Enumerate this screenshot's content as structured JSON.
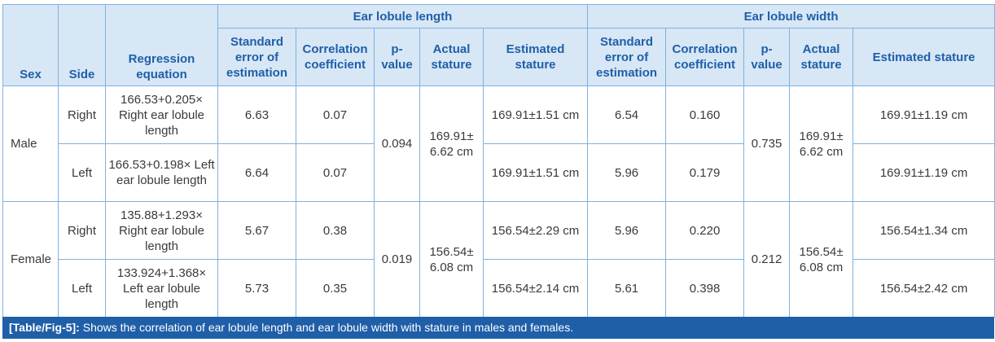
{
  "headers": {
    "sex": "Sex",
    "side": "Side",
    "regression": "Regression equation",
    "group_length": "Ear lobule length",
    "group_width": "Ear lobule width",
    "see": "Standard error of estimation",
    "corr": "Correlation coefficient",
    "pvalue": "p-value",
    "actual": "Actual stature",
    "estimated": "Estimated stature"
  },
  "rows": [
    {
      "sex": "Male",
      "side": "Right",
      "regression": "166.53+0.205× Right ear lobule length",
      "len_see": "6.63",
      "len_corr": "0.07",
      "len_p": "0.094",
      "len_actual": "169.91± 6.62 cm",
      "len_est": "169.91±1.51 cm",
      "wid_see": "6.54",
      "wid_corr": "0.160",
      "wid_p": "0.735",
      "wid_actual": "169.91± 6.62 cm",
      "wid_est": "169.91±1.19 cm"
    },
    {
      "side": "Left",
      "regression": "166.53+0.198× Left ear lobule length",
      "len_see": "6.64",
      "len_corr": "0.07",
      "len_est": "169.91±1.51 cm",
      "wid_see": "5.96",
      "wid_corr": "0.179",
      "wid_est": "169.91±1.19 cm"
    },
    {
      "sex": "Female",
      "side": "Right",
      "regression": "135.88+1.293× Right ear lobule length",
      "len_see": "5.67",
      "len_corr": "0.38",
      "len_p": "0.019",
      "len_actual": "156.54± 6.08 cm",
      "len_est": "156.54±2.29 cm",
      "wid_see": "5.96",
      "wid_corr": "0.220",
      "wid_p": "0.212",
      "wid_actual": "156.54± 6.08 cm",
      "wid_est": "156.54±1.34 cm"
    },
    {
      "side": "Left",
      "regression": "133.924+1.368× Left ear lobule length",
      "len_see": "5.73",
      "len_corr": "0.35",
      "len_est": "156.54±2.14 cm",
      "wid_see": "5.61",
      "wid_corr": "0.398",
      "wid_est": "156.54±2.42 cm"
    }
  ],
  "caption": {
    "label": "[Table/Fig-5]:",
    "text": " Shows the correlation of ear lobule length and ear lobule width with stature in males and females."
  },
  "colors": {
    "header_bg": "#d7e7f6",
    "header_text": "#1f5fa8",
    "border": "#7fb2dc",
    "caption_bg": "#1f5fa8"
  }
}
